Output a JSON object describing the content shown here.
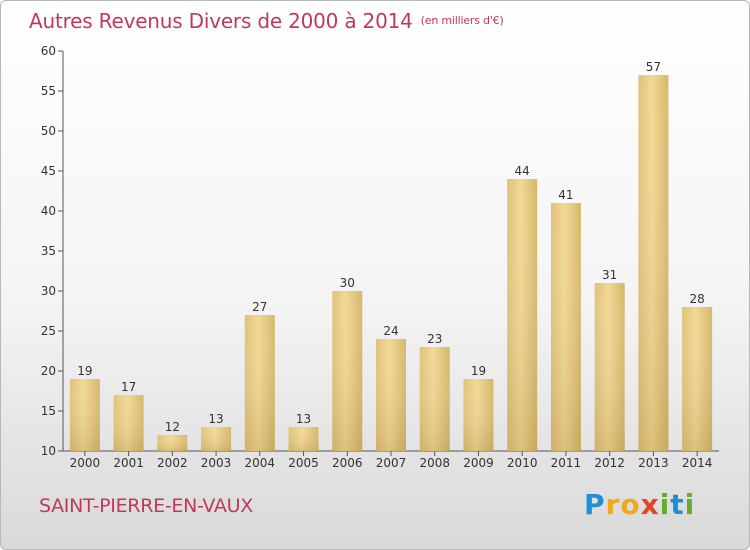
{
  "title": "Autres Revenus Divers de 2000 à 2014",
  "unit": "(en milliers d'€)",
  "location": "SAINT-PIERRE-EN-VAUX",
  "logo": {
    "text": "Proxiti",
    "letters": [
      {
        "char": "P",
        "color": "#1e8fd6"
      },
      {
        "char": "r",
        "color": "#f0a81c"
      },
      {
        "char": "o",
        "color": "#f0a81c"
      },
      {
        "char": "x",
        "color": "#e2442a"
      },
      {
        "char": "i",
        "color": "#5fae2e"
      },
      {
        "char": "t",
        "color": "#1e8fd6"
      },
      {
        "char": "i",
        "color": "#5fae2e"
      }
    ]
  },
  "chart_data": {
    "type": "bar",
    "categories": [
      "2000",
      "2001",
      "2002",
      "2003",
      "2004",
      "2005",
      "2006",
      "2007",
      "2008",
      "2009",
      "2010",
      "2011",
      "2012",
      "2013",
      "2014"
    ],
    "values": [
      19,
      17,
      12,
      13,
      27,
      13,
      30,
      24,
      23,
      19,
      44,
      41,
      31,
      57,
      28
    ],
    "ylim": [
      10,
      60
    ],
    "yticks": [
      10,
      15,
      20,
      25,
      30,
      35,
      40,
      45,
      50,
      55,
      60
    ],
    "grid": false,
    "bar_color": "#e6c97c",
    "data_labels": true
  }
}
